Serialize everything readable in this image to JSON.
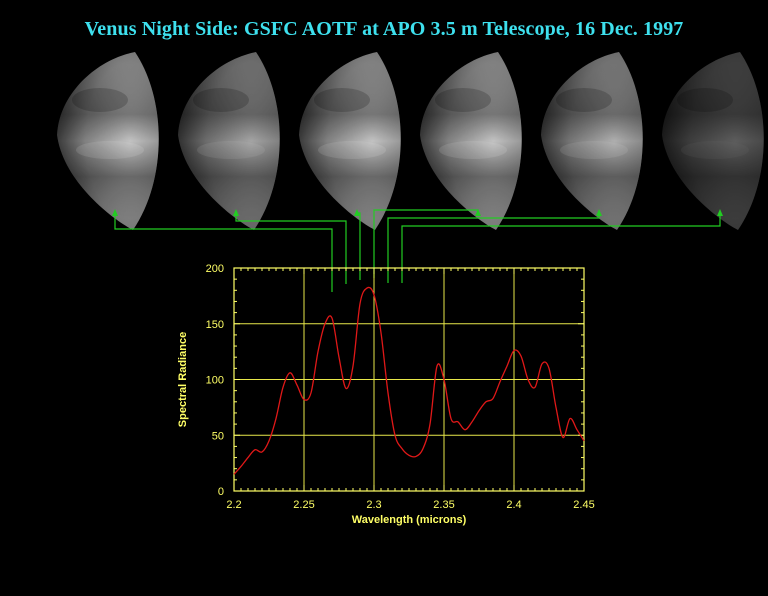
{
  "title": "Venus Night Side: GSFC AOTF at APO 3.5 m Telescope, 16 Dec. 1997",
  "colors": {
    "background": "#000000",
    "title": "#3ee0ee",
    "axes": "#ffff66",
    "grid": "#e8e84a",
    "curve": "#e01818",
    "callout": "#22cc22"
  },
  "images": {
    "count": 6,
    "brightness": [
      0.95,
      0.8,
      0.95,
      0.95,
      0.85,
      0.45
    ]
  },
  "chart_data": {
    "type": "line",
    "xlabel": "Wavelength (microns)",
    "ylabel": "Spectral Radiance",
    "xlim": [
      2.2,
      2.45
    ],
    "ylim": [
      0,
      200
    ],
    "xticks": [
      "2.2",
      "2.25",
      "2.3",
      "2.35",
      "2.4",
      "2.45"
    ],
    "yticks": [
      "0",
      "50",
      "100",
      "150",
      "200"
    ],
    "grid": true,
    "callout_wavelengths": [
      2.27,
      2.28,
      2.29,
      2.3,
      2.31,
      2.32
    ],
    "series": [
      {
        "x": [
          2.2,
          2.205,
          2.21,
          2.215,
          2.22,
          2.225,
          2.23,
          2.235,
          2.24,
          2.245,
          2.25,
          2.255,
          2.26,
          2.265,
          2.27,
          2.275,
          2.28,
          2.285,
          2.29,
          2.295,
          2.3,
          2.305,
          2.31,
          2.315,
          2.32,
          2.325,
          2.33,
          2.335,
          2.34,
          2.345,
          2.35,
          2.355,
          2.36,
          2.365,
          2.37,
          2.375,
          2.38,
          2.385,
          2.39,
          2.395,
          2.4,
          2.405,
          2.41,
          2.415,
          2.42,
          2.425,
          2.43,
          2.435,
          2.44,
          2.445,
          2.45
        ],
        "y": [
          15,
          22,
          30,
          37,
          35,
          45,
          65,
          93,
          106,
          95,
          82,
          88,
          125,
          150,
          155,
          120,
          92,
          112,
          168,
          182,
          176,
          142,
          88,
          50,
          38,
          32,
          31,
          38,
          60,
          112,
          100,
          65,
          62,
          55,
          62,
          72,
          80,
          83,
          98,
          112,
          126,
          121,
          100,
          93,
          114,
          110,
          75,
          48,
          65,
          55,
          45
        ]
      }
    ]
  }
}
